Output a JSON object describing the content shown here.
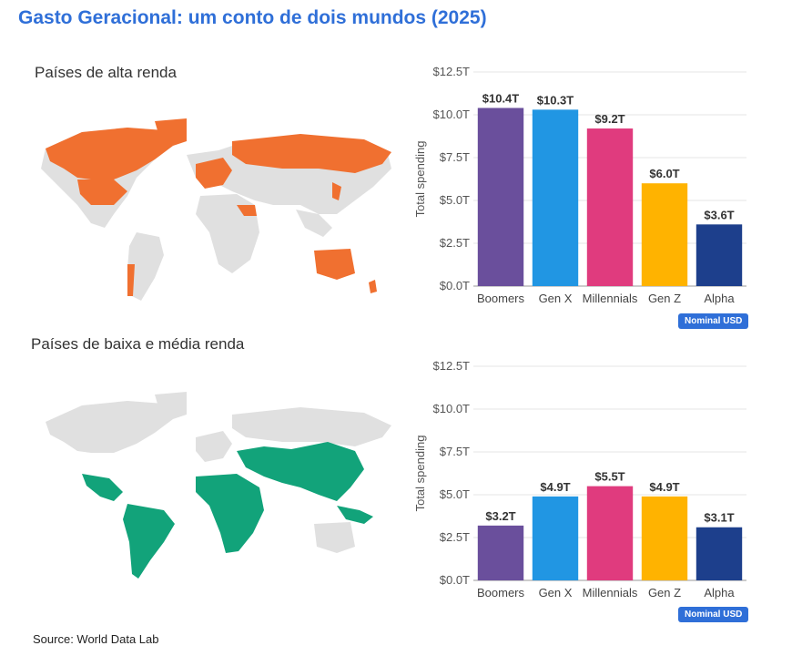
{
  "title": "Gasto Geracional: um conto de dois mundos (2025)",
  "panels": [
    {
      "label": "Países de alta renda",
      "map_highlight_color": "#f07030",
      "badge": "Nominal USD"
    },
    {
      "label": "Países de baixa e média renda",
      "map_highlight_color": "#12a37a",
      "badge": "Nominal USD"
    }
  ],
  "colors": {
    "map_base": "#e0e0e0",
    "title": "#2f6fd8"
  },
  "chart_data": [
    {
      "type": "bar",
      "ylabel": "Total spending",
      "ylim": [
        0,
        12.5
      ],
      "yticks": [
        "$0.0T",
        "$2.5T",
        "$5.0T",
        "$7.5T",
        "$10.0T",
        "$12.5T"
      ],
      "ytick_values": [
        0,
        2.5,
        5,
        7.5,
        10,
        12.5
      ],
      "grid": true,
      "categories": [
        "Boomers",
        "Gen X",
        "Millennials",
        "Gen Z",
        "Alpha"
      ],
      "values": [
        10.4,
        10.3,
        9.2,
        6.0,
        3.6
      ],
      "labels": [
        "$10.4T",
        "$10.3T",
        "$9.2T",
        "$6.0T",
        "$3.6T"
      ],
      "colors": [
        "#6a4f9c",
        "#2196e3",
        "#e03b7e",
        "#ffb300",
        "#1d3f8c"
      ]
    },
    {
      "type": "bar",
      "ylabel": "Total spending",
      "ylim": [
        0,
        12.5
      ],
      "yticks": [
        "$0.0T",
        "$2.5T",
        "$5.0T",
        "$7.5T",
        "$10.0T",
        "$12.5T"
      ],
      "ytick_values": [
        0,
        2.5,
        5,
        7.5,
        10,
        12.5
      ],
      "grid": true,
      "categories": [
        "Boomers",
        "Gen X",
        "Millennials",
        "Gen Z",
        "Alpha"
      ],
      "values": [
        3.2,
        4.9,
        5.5,
        4.9,
        3.1
      ],
      "labels": [
        "$3.2T",
        "$4.9T",
        "$5.5T",
        "$4.9T",
        "$3.1T"
      ],
      "colors": [
        "#6a4f9c",
        "#2196e3",
        "#e03b7e",
        "#ffb300",
        "#1d3f8c"
      ]
    }
  ],
  "source": "Source: World Data Lab"
}
